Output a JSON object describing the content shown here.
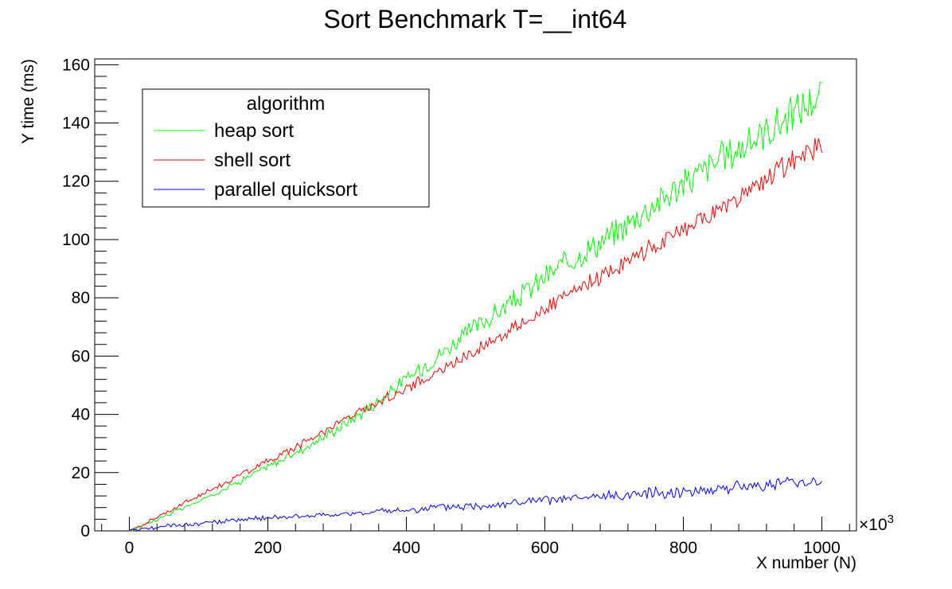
{
  "chart_data": {
    "type": "line",
    "title": "Sort Benchmark T=__int64",
    "xlabel": "X number (N)",
    "ylabel": "Y time (ms)",
    "x_multiplier_label": "×10",
    "x_multiplier_exp": "3",
    "xlim": [
      -50,
      1050
    ],
    "ylim": [
      0,
      162
    ],
    "x_ticks": [
      0,
      200,
      400,
      600,
      800,
      1000
    ],
    "x_tick_labels": [
      "0",
      "200",
      "400",
      "600",
      "800",
      "1000"
    ],
    "y_ticks": [
      0,
      20,
      40,
      60,
      80,
      100,
      120,
      140,
      160
    ],
    "y_tick_labels": [
      "0",
      "20",
      "40",
      "60",
      "80",
      "100",
      "120",
      "140",
      "160"
    ],
    "grid": false,
    "legend": {
      "title": "algorithm",
      "placement": "top-left"
    },
    "series": [
      {
        "name": "heap sort",
        "color": "#00ff00",
        "x": [
          0,
          50,
          100,
          150,
          200,
          250,
          300,
          350,
          400,
          450,
          500,
          550,
          600,
          650,
          700,
          750,
          800,
          850,
          900,
          950,
          1000
        ],
        "y": [
          0,
          5,
          10,
          16,
          22,
          28,
          35,
          43,
          52,
          61,
          70,
          78,
          87,
          95,
          102,
          111,
          119,
          127,
          134,
          142,
          150
        ]
      },
      {
        "name": "shell sort",
        "color": "#ff0000",
        "x": [
          0,
          50,
          100,
          150,
          200,
          250,
          300,
          350,
          400,
          450,
          500,
          550,
          600,
          650,
          700,
          750,
          800,
          850,
          900,
          950,
          1000
        ],
        "y": [
          0,
          6,
          12,
          18,
          24,
          30,
          37,
          43,
          49,
          55,
          62,
          69,
          76,
          83,
          90,
          97,
          103,
          110,
          117,
          126,
          133
        ]
      },
      {
        "name": "parallel quicksort",
        "color": "#0000ff",
        "x": [
          0,
          50,
          100,
          150,
          200,
          250,
          300,
          350,
          400,
          450,
          500,
          550,
          600,
          650,
          700,
          750,
          800,
          850,
          900,
          950,
          1000
        ],
        "y": [
          0,
          1.5,
          2.5,
          3.5,
          4.5,
          5,
          5.5,
          6.5,
          7,
          8,
          8.5,
          9.5,
          10.5,
          11,
          12,
          13,
          13.5,
          14.5,
          15.5,
          16.5,
          17.5
        ]
      }
    ]
  }
}
